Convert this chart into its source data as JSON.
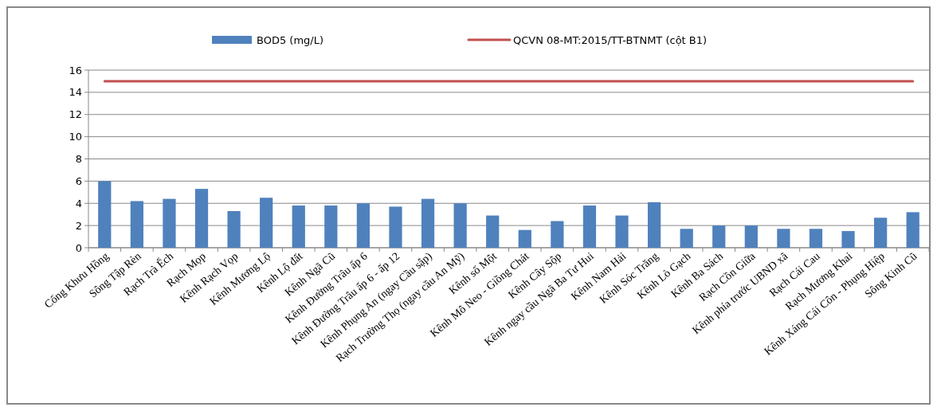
{
  "chart_data": {
    "type": "bar",
    "categories": [
      "Cống Khưu Hồng",
      "Sông Tập Rèn",
      "Rạch Trà Ếch",
      "Rạch Mọp",
      "Kênh Rạch Vọp",
      "Kênh Mương Lộ",
      "Kênh Lộ đất",
      "Kênh Ngã Cũ",
      "Kênh Đường Trâu ấp 6",
      "Kênh Đường Trâu ấp 6 - ấp 12",
      "Kênh Phụng An (ngay Cầu sập)",
      "Rạch Trường Thọ (ngay cầu An Mỹ)",
      "Kênh số Một",
      "Kênh Mô Neo - Giồng Chát",
      "Kênh Cây Sộp",
      "Kênh ngay cầu Ngã Ba Tư Hui",
      "Kênh Nam Hải",
      "Kênh Sóc Trăng",
      "Kênh Lò Gạch",
      "Kênh Ba Sách",
      "Rạch Cồn Giữa",
      "Kênh phía trước UBND xã",
      "Rạch Cái Cau",
      "Rạch Mương Khai",
      "Kênh Xáng Cái Côn - Phụng Hiệp",
      "Sông Kinh Cũ"
    ],
    "series": [
      {
        "name": "BOD5 (mg/L)",
        "color": "#4f81bd",
        "values": [
          6.0,
          4.2,
          4.4,
          5.3,
          3.3,
          4.5,
          3.8,
          3.8,
          4.0,
          3.7,
          4.4,
          4.0,
          2.9,
          1.6,
          2.4,
          3.8,
          2.9,
          4.1,
          1.7,
          2.0,
          2.0,
          1.7,
          1.7,
          1.5,
          2.7,
          3.2
        ]
      },
      {
        "name": "QCVN 08-MT:2015/TT-BTNMT (cột B1)",
        "type": "line",
        "color": "#c0504d",
        "values": [
          15,
          15,
          15,
          15,
          15,
          15,
          15,
          15,
          15,
          15,
          15,
          15,
          15,
          15,
          15,
          15,
          15,
          15,
          15,
          15,
          15,
          15,
          15,
          15,
          15,
          15
        ]
      }
    ],
    "ylim": [
      0,
      16
    ],
    "yticks": [
      0,
      2,
      4,
      6,
      8,
      10,
      12,
      14,
      16
    ],
    "grid": "y",
    "legend": "top",
    "marker": "none"
  }
}
